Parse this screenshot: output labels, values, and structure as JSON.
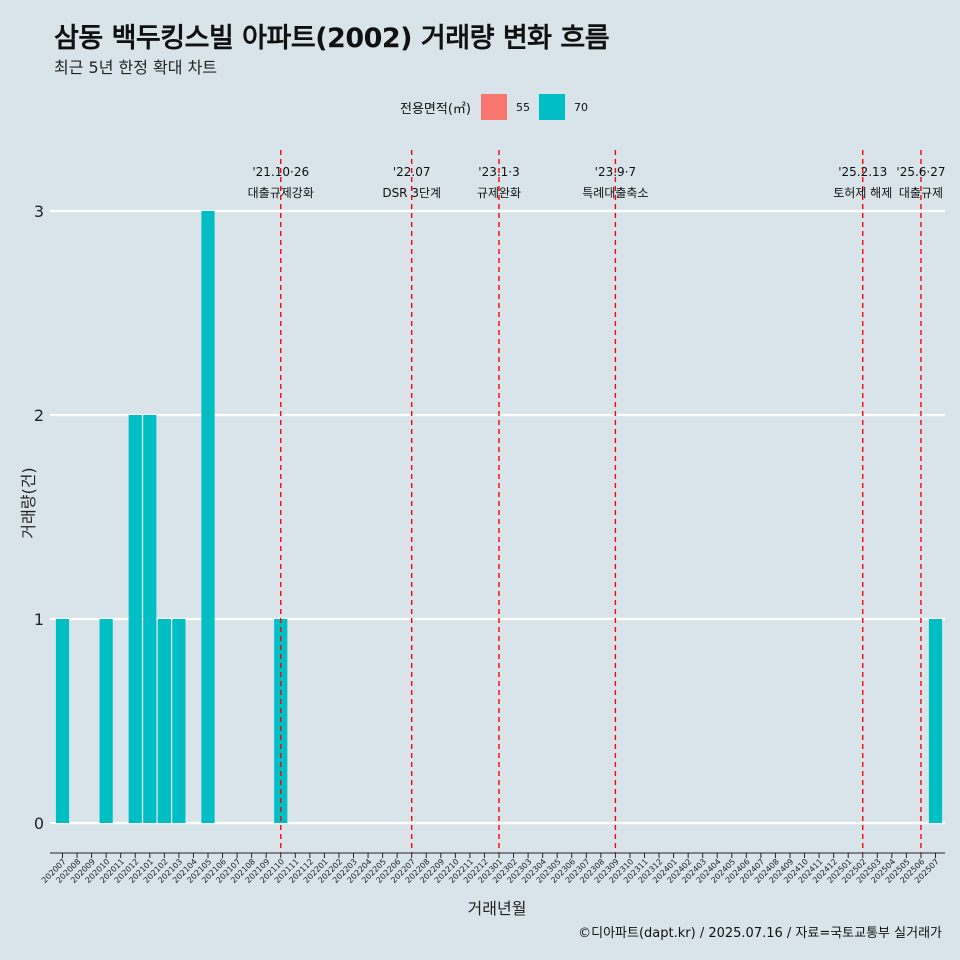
{
  "title": "삼동 백두킹스빌 아파트(2002) 거래량 변화 흐름",
  "subtitle": "최근 5년 한정 확대 차트",
  "caption": "©디아파트(dapt.kr) / 2025.07.16 / 자료=국토교통부 실거래가",
  "legend": {
    "title": "전용면적(㎡)",
    "items": [
      {
        "label": "55",
        "color": "#f8766d"
      },
      {
        "label": "70",
        "color": "#00bfc4"
      }
    ]
  },
  "chart_data": {
    "type": "bar",
    "xlabel": "거래년월",
    "ylabel": "거래량(건)",
    "ylim": [
      0,
      3
    ],
    "yticks": [
      0,
      1,
      2,
      3
    ],
    "grid": "horizontal",
    "legend_position": "top",
    "categories": [
      "202007",
      "202008",
      "202009",
      "202010",
      "202011",
      "202012",
      "202101",
      "202102",
      "202103",
      "202104",
      "202105",
      "202106",
      "202107",
      "202108",
      "202109",
      "202110",
      "202111",
      "202112",
      "202201",
      "202202",
      "202203",
      "202204",
      "202205",
      "202206",
      "202207",
      "202208",
      "202209",
      "202210",
      "202211",
      "202212",
      "202301",
      "202302",
      "202303",
      "202304",
      "202305",
      "202306",
      "202307",
      "202308",
      "202309",
      "202310",
      "202311",
      "202312",
      "202401",
      "202402",
      "202403",
      "202404",
      "202405",
      "202406",
      "202407",
      "202408",
      "202409",
      "202410",
      "202411",
      "202412",
      "202501",
      "202502",
      "202503",
      "202504",
      "202505",
      "202506",
      "202507"
    ],
    "series": [
      {
        "name": "55",
        "color": "#f8766d",
        "values": [
          0,
          0,
          0,
          0,
          0,
          0,
          0,
          0,
          0,
          0,
          0,
          0,
          0,
          0,
          0,
          0,
          0,
          0,
          0,
          0,
          0,
          0,
          0,
          0,
          0,
          0,
          0,
          0,
          0,
          0,
          0,
          0,
          0,
          0,
          0,
          0,
          0,
          0,
          0,
          0,
          0,
          0,
          0,
          0,
          0,
          0,
          0,
          0,
          0,
          0,
          0,
          0,
          0,
          0,
          0,
          0,
          0,
          0,
          0,
          0,
          0
        ]
      },
      {
        "name": "70",
        "color": "#00bfc4",
        "values": [
          1,
          0,
          0,
          1,
          0,
          2,
          2,
          1,
          1,
          0,
          3,
          0,
          0,
          0,
          0,
          1,
          0,
          0,
          0,
          0,
          0,
          0,
          0,
          0,
          0,
          0,
          0,
          0,
          0,
          0,
          0,
          0,
          0,
          0,
          0,
          0,
          0,
          0,
          0,
          0,
          0,
          0,
          0,
          0,
          0,
          0,
          0,
          0,
          0,
          0,
          0,
          0,
          0,
          0,
          0,
          0,
          0,
          0,
          0,
          0,
          1
        ]
      }
    ],
    "events": [
      {
        "date": "'21.10·26",
        "name": "대출규제강화",
        "at": "202110"
      },
      {
        "date": "'22.07",
        "name": "DSR 3단계",
        "at": "202207"
      },
      {
        "date": "'23.1·3",
        "name": "규제완화",
        "at": "202301"
      },
      {
        "date": "'23.9·7",
        "name": "특례대출축소",
        "at": "202309"
      },
      {
        "date": "'25.2.13",
        "name": "토허제 해제",
        "at": "202502"
      },
      {
        "date": "'25.6·27",
        "name": "대출규제",
        "at": "202506"
      }
    ],
    "event_line_color": "#ff0000"
  }
}
